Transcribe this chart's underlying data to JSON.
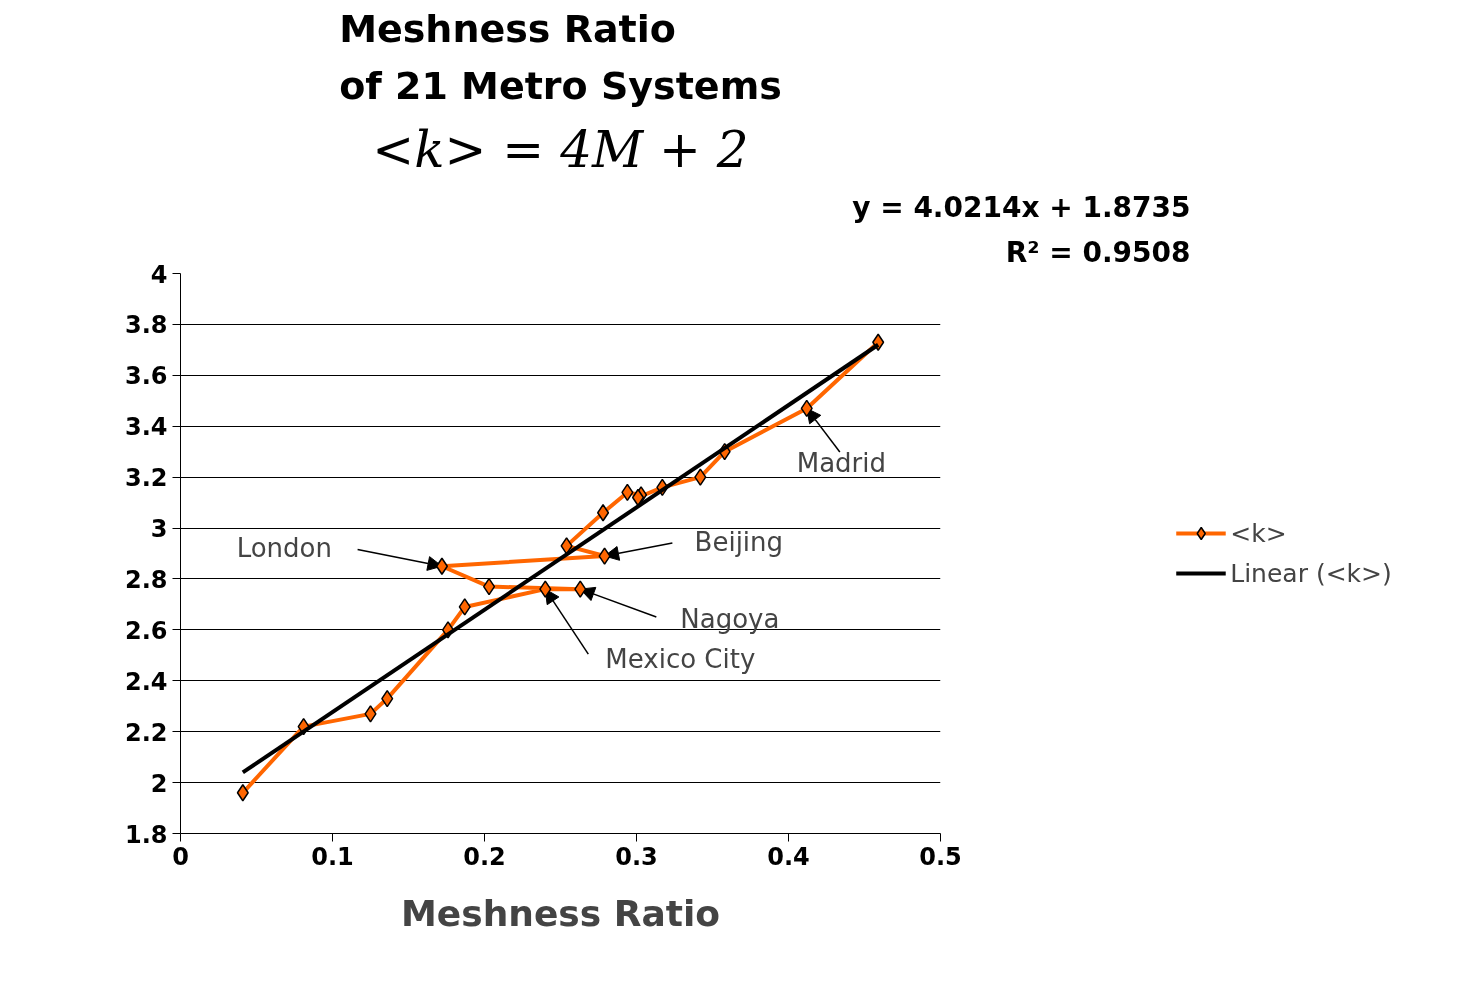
{
  "chart_data": {
    "type": "line",
    "title": "Meshness Ratio\nof 21 Metro Systems",
    "subtitle": "<k> = 4M + 2",
    "xlabel": "Meshness Ratio",
    "x": [
      0.041,
      0.081,
      0.125,
      0.136,
      0.176,
      0.187,
      0.24,
      0.263,
      0.203,
      0.172,
      0.279,
      0.254,
      0.278,
      0.294,
      0.303,
      0.301,
      0.317,
      0.342,
      0.358,
      0.412,
      0.459
    ],
    "series": [
      {
        "name": "<k>",
        "color": "#ff6600",
        "marker": "diamond",
        "values": [
          1.96,
          2.22,
          2.27,
          2.33,
          2.6,
          2.69,
          2.76,
          2.76,
          2.77,
          2.85,
          2.89,
          2.93,
          3.06,
          3.14,
          3.13,
          3.12,
          3.16,
          3.2,
          3.3,
          3.47,
          3.73
        ]
      },
      {
        "name": "Linear (<k>)",
        "color": "#000000",
        "marker": "none",
        "x": [
          0.041,
          0.459
        ],
        "values": [
          2.04,
          3.72
        ]
      }
    ],
    "xlim": [
      0,
      0.5
    ],
    "ylim": [
      1.8,
      4
    ],
    "xticks": [
      0,
      0.1,
      0.2,
      0.3,
      0.4,
      0.5
    ],
    "yticks": [
      1.8,
      2,
      2.2,
      2.4,
      2.6,
      2.8,
      3,
      3.2,
      3.4,
      3.6,
      3.8,
      4
    ],
    "grid": "y",
    "legend": "right",
    "line_style": "solid",
    "annotations": [
      {
        "text": "London",
        "x": 0.172,
        "y": 2.85
      },
      {
        "text": "Beijing",
        "x": 0.279,
        "y": 2.89
      },
      {
        "text": "Nagoya",
        "x": 0.263,
        "y": 2.76
      },
      {
        "text": "Mexico City",
        "x": 0.24,
        "y": 2.76
      },
      {
        "text": "Madrid",
        "x": 0.412,
        "y": 3.47
      },
      "y = 4.0214x + 1.8735",
      "R² = 0.9508"
    ]
  }
}
